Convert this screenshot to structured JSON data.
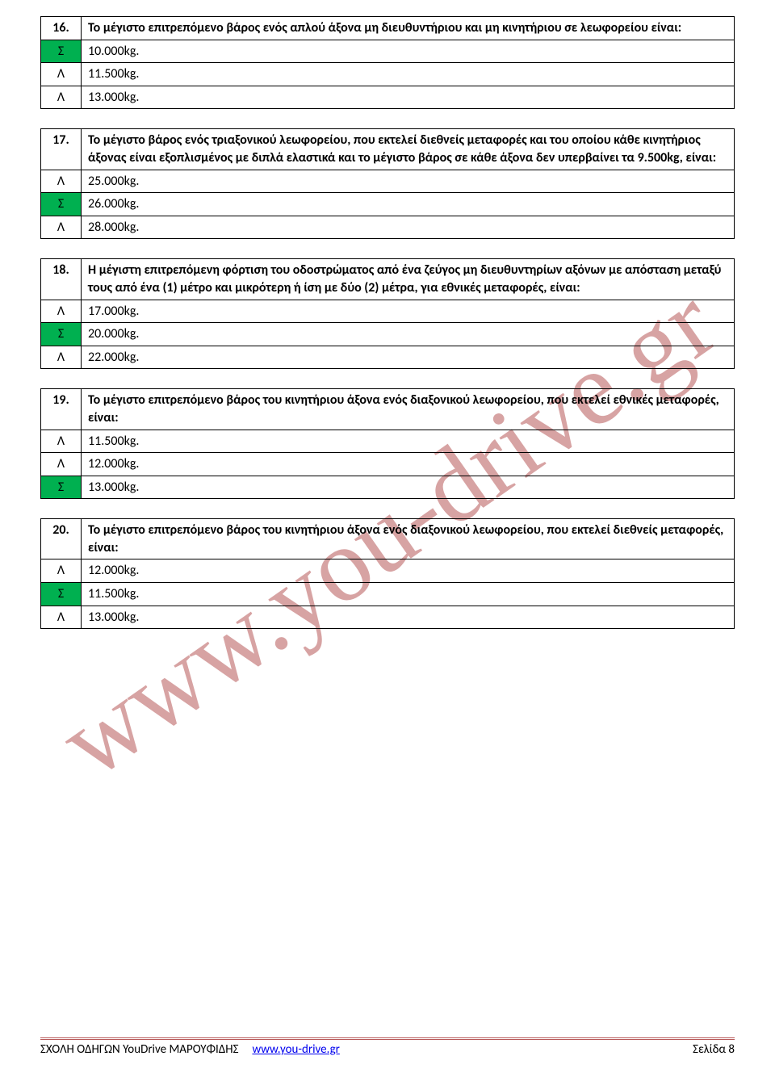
{
  "watermark": "www.you-drive.gr",
  "questions": [
    {
      "num": "16.",
      "text": "Το μέγιστο επιτρεπόμενο βάρος ενός απλού άξονα μη διευθυντήριου και μη κινητήριου σε λεωφορείου είναι:",
      "answers": [
        {
          "mark": "Σ",
          "text": "10.000kg.",
          "correct": true
        },
        {
          "mark": "Λ",
          "text": "11.500kg.",
          "correct": false
        },
        {
          "mark": "Λ",
          "text": "13.000kg.",
          "correct": false
        }
      ]
    },
    {
      "num": "17.",
      "text": "Το μέγιστο βάρος ενός τριαξονικού λεωφορείου, που εκτελεί διεθνείς μεταφορές και του οποίου κάθε κινητήριος άξονας είναι εξοπλισμένος με διπλά ελαστικά και το μέγιστο βάρος σε κάθε άξονα δεν υπερβαίνει τα 9.500kg, είναι:",
      "answers": [
        {
          "mark": "Λ",
          "text": "25.000kg.",
          "correct": false
        },
        {
          "mark": "Σ",
          "text": "26.000kg.",
          "correct": true
        },
        {
          "mark": "Λ",
          "text": "28.000kg.",
          "correct": false
        }
      ]
    },
    {
      "num": "18.",
      "text": "Η μέγιστη επιτρεπόμενη φόρτιση του οδοστρώματος από ένα ζεύγος μη διευθυντηρίων αξόνων με απόσταση μεταξύ τους από ένα (1) μέτρο και μικρότερη ή ίση με δύο (2) μέτρα, για εθνικές μεταφορές, είναι:",
      "answers": [
        {
          "mark": "Λ",
          "text": "17.000kg.",
          "correct": false
        },
        {
          "mark": "Σ",
          "text": "20.000kg.",
          "correct": true
        },
        {
          "mark": "Λ",
          "text": "22.000kg.",
          "correct": false
        }
      ]
    },
    {
      "num": "19.",
      "text": "Το μέγιστο επιτρεπόμενο βάρος του κινητήριου άξονα ενός διαξονικού λεωφορείου, που εκτελεί εθνικές μεταφορές, είναι:",
      "answers": [
        {
          "mark": "Λ",
          "text": "11.500kg.",
          "correct": false
        },
        {
          "mark": "Λ",
          "text": "12.000kg.",
          "correct": false
        },
        {
          "mark": "Σ",
          "text": "13.000kg.",
          "correct": true
        }
      ]
    },
    {
      "num": "20.",
      "text": "Το μέγιστο επιτρεπόμενο βάρος του κινητήριου άξονα ενός διαξονικού λεωφορείου, που εκτελεί διεθνείς μεταφορές, είναι:",
      "answers": [
        {
          "mark": "Λ",
          "text": "12.000kg.",
          "correct": false
        },
        {
          "mark": "Σ",
          "text": "11.500kg.",
          "correct": true
        },
        {
          "mark": "Λ",
          "text": "13.000kg.",
          "correct": false
        }
      ]
    }
  ],
  "footer": {
    "left": "ΣΧΟΛΗ ΟΔΗΓΩΝ YouDrive ΜΑΡΟΥΦΙΔΗΣ",
    "link": "www.you-drive.gr",
    "right": "Σελίδα 8"
  }
}
